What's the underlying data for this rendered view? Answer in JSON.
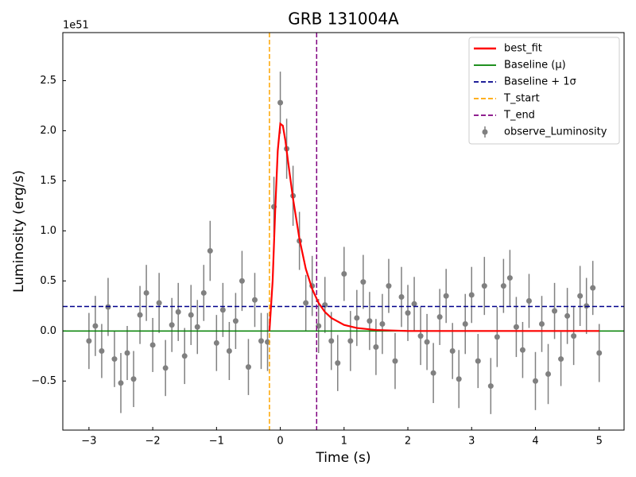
{
  "chart_data": {
    "type": "errorbar",
    "title": "GRB 131004A",
    "xlabel": "Time (s)",
    "ylabel": "Luminosity (erg/s)",
    "y_offset_label": "1e51",
    "xlim": [
      -3.41,
      5.39
    ],
    "ylim": [
      -0.99,
      2.98
    ],
    "xticks": [
      {
        "value": -3,
        "label": "−3"
      },
      {
        "value": -2,
        "label": "−2"
      },
      {
        "value": -1,
        "label": "−1"
      },
      0,
      1,
      2,
      3,
      4,
      5
    ],
    "yticks": [
      {
        "value": -0.5,
        "label": "−0.5"
      },
      {
        "value": 0,
        "label": "0.0"
      },
      {
        "value": 0.5,
        "label": "0.5"
      },
      {
        "value": 1,
        "label": "1.0"
      },
      {
        "value": 1.5,
        "label": "1.5"
      },
      {
        "value": 2,
        "label": "2.0"
      },
      {
        "value": 2.5,
        "label": "2.5"
      }
    ],
    "legend": "upper right",
    "series": [
      {
        "name": "best_fit",
        "kind": "curve",
        "color": "#ff0000",
        "dash": false,
        "x": [
          -0.17,
          -0.12,
          -0.08,
          -0.04,
          0,
          0.04,
          0.08,
          0.12,
          0.2,
          0.3,
          0.4,
          0.5,
          0.6,
          0.7,
          0.8,
          1.0,
          1.2,
          1.5,
          2.0,
          2.5,
          3.0,
          4.0,
          5.0
        ],
        "values": [
          0,
          0.5,
          1.2,
          1.8,
          2.07,
          2.05,
          1.9,
          1.7,
          1.32,
          0.92,
          0.62,
          0.42,
          0.28,
          0.19,
          0.13,
          0.06,
          0.03,
          0.01,
          0,
          0,
          0,
          0,
          0
        ]
      },
      {
        "name": "Baseline (μ)",
        "kind": "hline",
        "color": "#008000",
        "dash": false,
        "value": 0
      },
      {
        "name": "Baseline + 1σ",
        "kind": "hline",
        "color": "#00008b",
        "dash": true,
        "value": 0.245
      },
      {
        "name": "T_start",
        "kind": "vline",
        "color": "#ffa500",
        "dash": true,
        "value": -0.17
      },
      {
        "name": "T_end",
        "kind": "vline",
        "color": "#800080",
        "dash": true,
        "value": 0.57
      },
      {
        "name": "observe_Luminosity",
        "kind": "points",
        "color": "#808080",
        "x": [
          -3.0,
          -2.9,
          -2.8,
          -2.7,
          -2.6,
          -2.5,
          -2.4,
          -2.3,
          -2.2,
          -2.1,
          -2.0,
          -1.9,
          -1.8,
          -1.7,
          -1.6,
          -1.5,
          -1.4,
          -1.3,
          -1.2,
          -1.1,
          -1.0,
          -0.9,
          -0.8,
          -0.7,
          -0.6,
          -0.5,
          -0.4,
          -0.3,
          -0.2,
          -0.1,
          0.0,
          0.1,
          0.2,
          0.3,
          0.4,
          0.5,
          0.6,
          0.7,
          0.8,
          0.9,
          1.0,
          1.1,
          1.2,
          1.3,
          1.4,
          1.5,
          1.6,
          1.7,
          1.8,
          1.9,
          2.0,
          2.1,
          2.2,
          2.3,
          2.4,
          2.5,
          2.6,
          2.7,
          2.8,
          2.9,
          3.0,
          3.1,
          3.2,
          3.3,
          3.4,
          3.5,
          3.6,
          3.7,
          3.8,
          3.9,
          4.0,
          4.1,
          4.2,
          4.3,
          4.4,
          4.5,
          4.6,
          4.7,
          4.8,
          4.9,
          5.0
        ],
        "values": [
          -0.1,
          0.05,
          -0.2,
          0.24,
          -0.28,
          -0.52,
          -0.22,
          -0.48,
          0.16,
          0.38,
          -0.14,
          0.28,
          -0.37,
          0.06,
          0.19,
          -0.25,
          0.16,
          0.04,
          0.38,
          0.8,
          -0.12,
          0.21,
          -0.2,
          0.1,
          0.5,
          -0.36,
          0.31,
          -0.1,
          -0.11,
          1.24,
          2.28,
          1.82,
          1.35,
          0.9,
          0.28,
          0.45,
          0.05,
          0.26,
          -0.1,
          -0.32,
          0.57,
          -0.1,
          0.13,
          0.49,
          0.1,
          -0.16,
          0.07,
          0.45,
          -0.3,
          0.34,
          0.18,
          0.27,
          -0.05,
          -0.11,
          -0.42,
          0.14,
          0.35,
          -0.2,
          -0.48,
          0.07,
          0.36,
          -0.3,
          0.45,
          -0.55,
          -0.06,
          0.45,
          0.53,
          0.04,
          -0.19,
          0.3,
          -0.5,
          0.07,
          -0.43,
          0.2,
          -0.28,
          0.15,
          -0.05,
          0.35,
          0.25,
          0.43,
          -0.22
        ],
        "errors": [
          0.28,
          0.3,
          0.27,
          0.29,
          0.28,
          0.3,
          0.27,
          0.28,
          0.29,
          0.28,
          0.27,
          0.3,
          0.28,
          0.27,
          0.29,
          0.28,
          0.3,
          0.27,
          0.28,
          0.3,
          0.28,
          0.27,
          0.29,
          0.28,
          0.3,
          0.28,
          0.27,
          0.28,
          0.29,
          0.3,
          0.31,
          0.3,
          0.3,
          0.29,
          0.28,
          0.3,
          0.27,
          0.28,
          0.29,
          0.28,
          0.27,
          0.3,
          0.28,
          0.27,
          0.29,
          0.28,
          0.3,
          0.27,
          0.28,
          0.3,
          0.28,
          0.27,
          0.29,
          0.28,
          0.3,
          0.28,
          0.27,
          0.28,
          0.29,
          0.3,
          0.28,
          0.27,
          0.29,
          0.28,
          0.3,
          0.27,
          0.28,
          0.3,
          0.28,
          0.27,
          0.29,
          0.28,
          0.3,
          0.28,
          0.27,
          0.28,
          0.29,
          0.3,
          0.28,
          0.27,
          0.29
        ]
      }
    ]
  }
}
